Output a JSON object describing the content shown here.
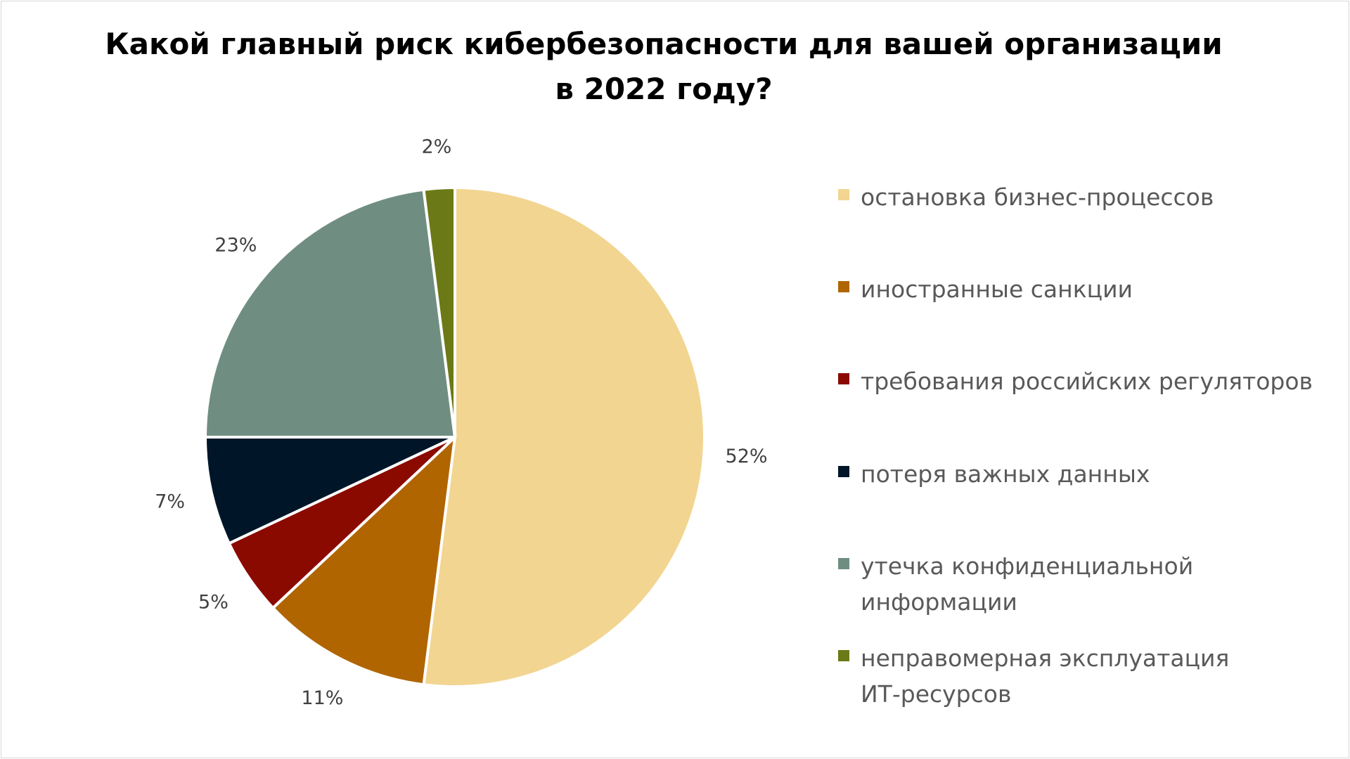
{
  "chart_data": {
    "type": "pie",
    "title": [
      "Какой главный риск кибербезопасности для вашей организации",
      "в 2022 году?"
    ],
    "legend_position": "right",
    "slices": [
      {
        "label": "остановка бизнес-процессов",
        "value": 52,
        "data_label": "52%",
        "color": "#F2D591"
      },
      {
        "label": "иностранные санкции",
        "value": 11,
        "data_label": "11%",
        "color": "#B06500"
      },
      {
        "label": "требования российских регуляторов",
        "value": 5,
        "data_label": "5%",
        "color": "#8B0A00"
      },
      {
        "label": "потеря важных данных",
        "value": 7,
        "data_label": "7%",
        "color": "#001628"
      },
      {
        "label": "утечка конфиденциальной информации",
        "value": 23,
        "data_label": "23%",
        "color": "#6F8E81"
      },
      {
        "label": "неправомерная эксплуатация ИТ-ресурсов",
        "value": 2,
        "data_label": "2%",
        "color": "#6B7A16"
      }
    ]
  }
}
